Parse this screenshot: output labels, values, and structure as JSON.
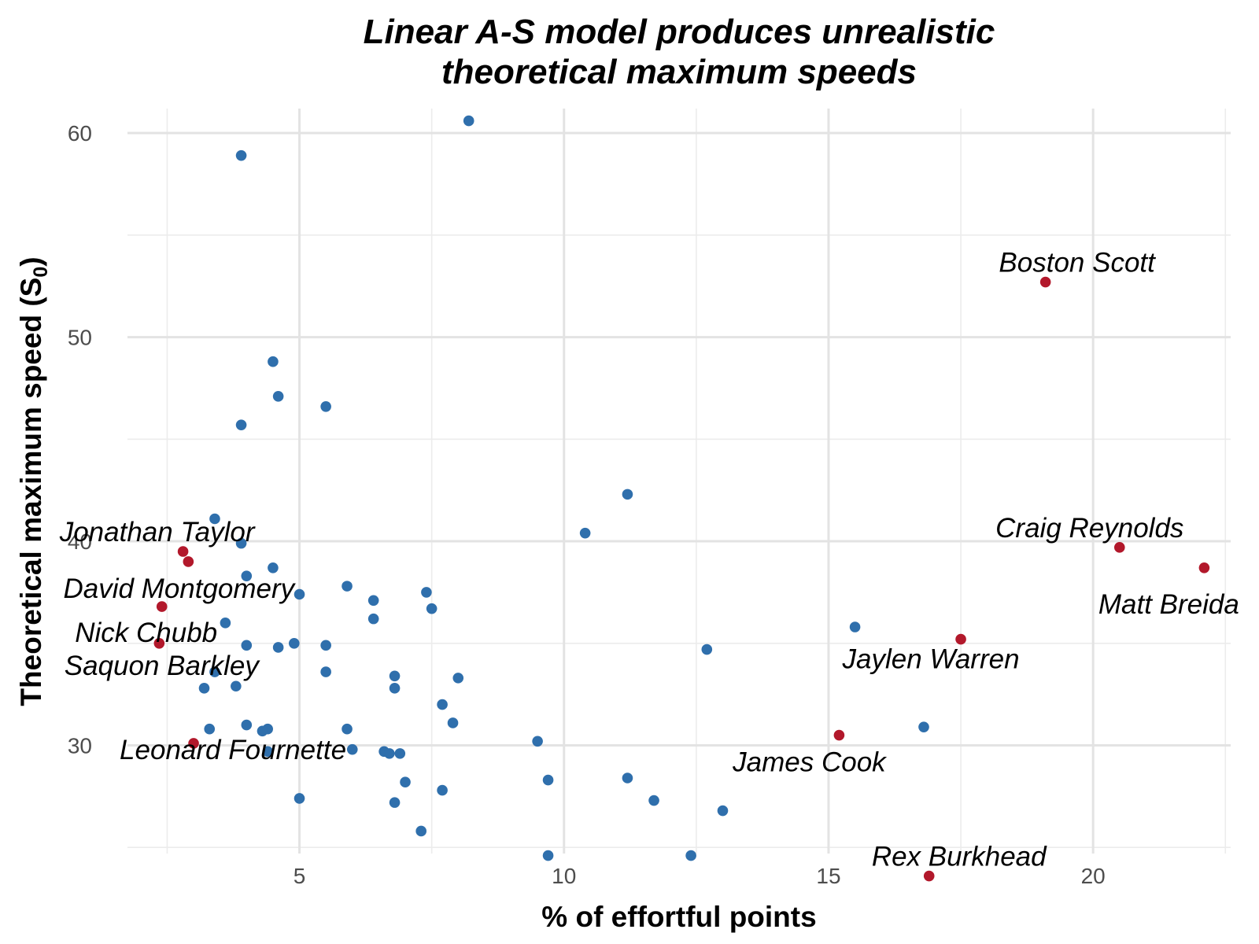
{
  "chart_data": {
    "type": "scatter",
    "title": "Linear A-S model produces unrealistic theoretical maximum speeds",
    "title_lines": [
      "Linear A-S model produces unrealistic",
      "theoretical maximum speeds"
    ],
    "xlabel": "% of effortful points",
    "ylabel": "Theoretical maximum speed (S",
    "ylabel_sub": "0",
    "ylabel_close": ")",
    "xlim": [
      1.75,
      22.6
    ],
    "ylim": [
      24.7,
      61.2
    ],
    "x_ticks": [
      5,
      10,
      15,
      20
    ],
    "x_tick_labels": [
      "5",
      "10",
      "15",
      "20"
    ],
    "y_ticks": [
      30,
      40,
      50,
      60
    ],
    "y_tick_labels": [
      "30",
      "40",
      "50",
      "60"
    ],
    "grid": true,
    "colors": {
      "default": "#2f6fac",
      "highlight": "#b2182b"
    },
    "series": [
      {
        "points": [
          [
            8.2,
            60.6
          ],
          [
            3.9,
            58.9
          ],
          [
            4.5,
            48.8
          ],
          [
            4.6,
            47.1
          ],
          [
            5.5,
            46.6
          ],
          [
            3.9,
            45.7
          ],
          [
            11.2,
            42.3
          ],
          [
            10.4,
            40.4
          ],
          [
            3.4,
            41.1
          ],
          [
            3.9,
            39.9
          ],
          [
            4.5,
            38.7
          ],
          [
            4.0,
            38.3
          ],
          [
            5.9,
            37.8
          ],
          [
            5.0,
            37.4
          ],
          [
            6.4,
            37.1
          ],
          [
            7.4,
            37.5
          ],
          [
            7.5,
            36.7
          ],
          [
            6.4,
            36.2
          ],
          [
            3.6,
            36.0
          ],
          [
            4.0,
            34.9
          ],
          [
            4.6,
            34.8
          ],
          [
            4.9,
            35.0
          ],
          [
            5.5,
            34.9
          ],
          [
            15.5,
            35.8
          ],
          [
            12.7,
            34.7
          ],
          [
            3.4,
            33.6
          ],
          [
            5.5,
            33.6
          ],
          [
            6.8,
            33.4
          ],
          [
            8.0,
            33.3
          ],
          [
            3.2,
            32.8
          ],
          [
            3.8,
            32.9
          ],
          [
            6.8,
            32.8
          ],
          [
            7.7,
            32.0
          ],
          [
            7.9,
            31.1
          ],
          [
            3.3,
            30.8
          ],
          [
            4.0,
            31.0
          ],
          [
            4.4,
            30.8
          ],
          [
            4.3,
            30.7
          ],
          [
            5.9,
            30.8
          ],
          [
            16.8,
            30.9
          ],
          [
            9.5,
            30.2
          ],
          [
            6.0,
            29.8
          ],
          [
            4.4,
            29.7
          ],
          [
            6.6,
            29.7
          ],
          [
            6.7,
            29.6
          ],
          [
            6.9,
            29.6
          ],
          [
            9.7,
            28.3
          ],
          [
            11.2,
            28.4
          ],
          [
            7.0,
            28.2
          ],
          [
            7.7,
            27.8
          ],
          [
            11.7,
            27.3
          ],
          [
            13.0,
            26.8
          ],
          [
            5.0,
            27.4
          ],
          [
            6.8,
            27.2
          ],
          [
            7.3,
            25.8
          ],
          [
            9.7,
            24.6
          ],
          [
            12.4,
            24.6
          ]
        ]
      },
      {
        "highlight": true,
        "points": [
          {
            "x": 19.1,
            "y": 52.7,
            "label": "Boston Scott"
          },
          {
            "x": 20.5,
            "y": 39.7,
            "label": "Craig Reynolds"
          },
          {
            "x": 22.1,
            "y": 38.7,
            "label": "Matt Breida"
          },
          {
            "x": 17.5,
            "y": 35.2,
            "label": "Jaylen Warren"
          },
          {
            "x": 15.2,
            "y": 30.5,
            "label": "James Cook"
          },
          {
            "x": 16.9,
            "y": 23.6,
            "label": "Rex Burkhead"
          },
          {
            "x": 2.8,
            "y": 39.5,
            "label": "Jonathan Taylor"
          },
          {
            "x": 2.9,
            "y": 39.0,
            "label": "David Montgomery"
          },
          {
            "x": 2.4,
            "y": 36.8,
            "label": "Nick Chubb"
          },
          {
            "x": 2.35,
            "y": 35.0,
            "label": "Saquon Barkley"
          },
          {
            "x": 3.0,
            "y": 30.1,
            "label": "Leonard Fournette"
          }
        ]
      }
    ]
  }
}
